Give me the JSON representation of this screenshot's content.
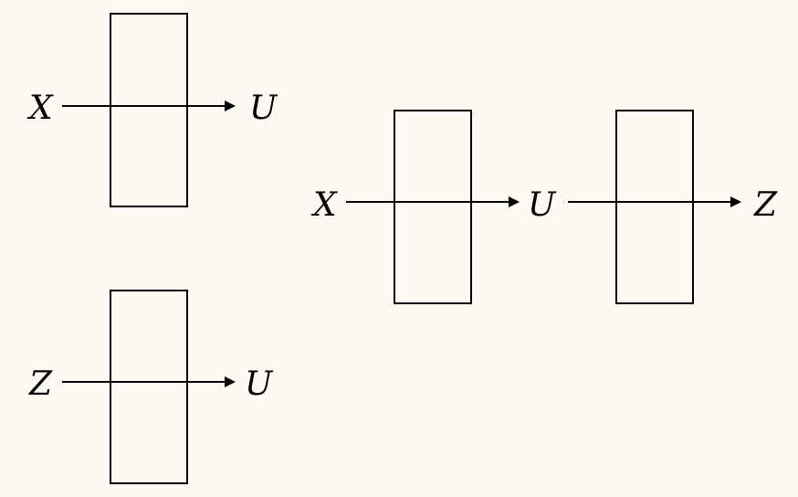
{
  "colors": {
    "background": "#fdf9f3",
    "stroke": "#000000"
  },
  "diagrams": {
    "top_left": {
      "input_label": "X",
      "output_label": "U"
    },
    "bottom_left": {
      "input_label": "Z",
      "output_label": "U"
    },
    "right_chain": {
      "input_label": "X",
      "middle_label": "U",
      "output_label": "Z"
    }
  }
}
